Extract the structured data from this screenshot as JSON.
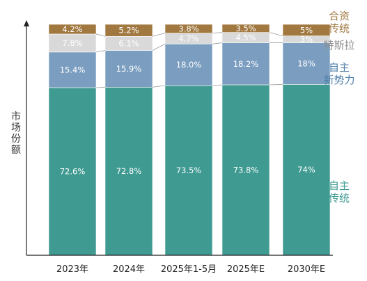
{
  "chart_data": {
    "type": "bar",
    "stacked": true,
    "ylabel": "市场份额",
    "categories": [
      "2023年",
      "2024年",
      "2025年1-5月",
      "2025年E",
      "2030年E"
    ],
    "series": [
      {
        "name": "自主传统",
        "values": [
          72.6,
          72.8,
          73.5,
          73.8,
          74
        ],
        "labels": [
          "72.6%",
          "72.8%",
          "73.5%",
          "73.8%",
          "74%"
        ],
        "color": "#3f9a92",
        "legend": [
          "自主",
          "传统"
        ]
      },
      {
        "name": "自主新势力",
        "values": [
          15.4,
          15.9,
          18.0,
          18.2,
          18
        ],
        "labels": [
          "15.4%",
          "15.9%",
          "18.0%",
          "18.2%",
          "18%"
        ],
        "color": "#7b9ec0",
        "legend": [
          "自主",
          "新势力"
        ]
      },
      {
        "name": "特斯拉",
        "values": [
          7.8,
          6.1,
          4.7,
          4.5,
          3
        ],
        "labels": [
          "7.8%",
          "6.1%",
          "4.7%",
          "4.5%",
          "3%"
        ],
        "color": "#d9d9d9",
        "legend": [
          "特斯拉"
        ]
      },
      {
        "name": "合资传统",
        "values": [
          4.2,
          5.2,
          3.8,
          3.5,
          5
        ],
        "labels": [
          "4.2%",
          "5.2%",
          "3.8%",
          "3.5%",
          "5%"
        ],
        "color": "#a17840",
        "legend": [
          "合资",
          "传统"
        ]
      }
    ],
    "ylim": [
      0,
      100
    ],
    "grid": false,
    "legend_position": "right"
  }
}
